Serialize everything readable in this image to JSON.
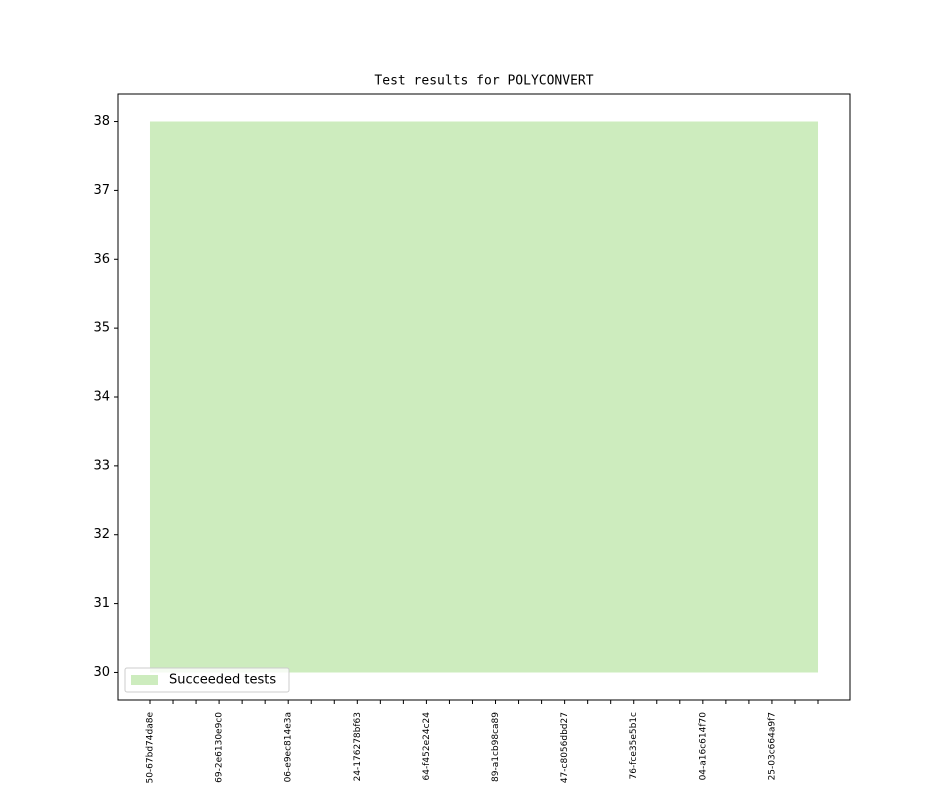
{
  "chart_data": {
    "type": "area",
    "title": "Test results for POLYCONVERT",
    "categories": [
      "50-67bd74da8e",
      null,
      null,
      "69-2e6130e9c0",
      null,
      null,
      "06-e9ec814e3a",
      null,
      null,
      "24-176278bf63",
      null,
      null,
      "64-f452e24c24",
      null,
      null,
      "89-a1cb98ca89",
      null,
      null,
      "47-c8056dbd27",
      null,
      null,
      "76-fce35e5b1c",
      null,
      null,
      "04-a16c614f70",
      null,
      null,
      "25-03c664a9f7",
      null,
      null
    ],
    "series": [
      {
        "name": "Succeeded tests",
        "color": "#cdecbe",
        "lower": [
          30,
          30,
          30,
          30,
          30,
          30,
          30,
          30,
          30,
          30,
          30,
          30,
          30,
          30,
          30,
          30,
          30,
          30,
          30,
          30,
          30,
          30,
          30,
          30,
          30,
          30,
          30,
          30,
          30,
          30
        ],
        "values": [
          38,
          38,
          38,
          38,
          38,
          38,
          38,
          38,
          38,
          38,
          38,
          38,
          38,
          38,
          38,
          38,
          38,
          38,
          38,
          38,
          38,
          38,
          38,
          38,
          38,
          38,
          38,
          38,
          38,
          38
        ]
      }
    ],
    "ylim": [
      29.6,
      38.4
    ],
    "yticks": [
      30,
      31,
      32,
      33,
      34,
      35,
      36,
      37,
      38
    ],
    "legend": "lower left"
  }
}
